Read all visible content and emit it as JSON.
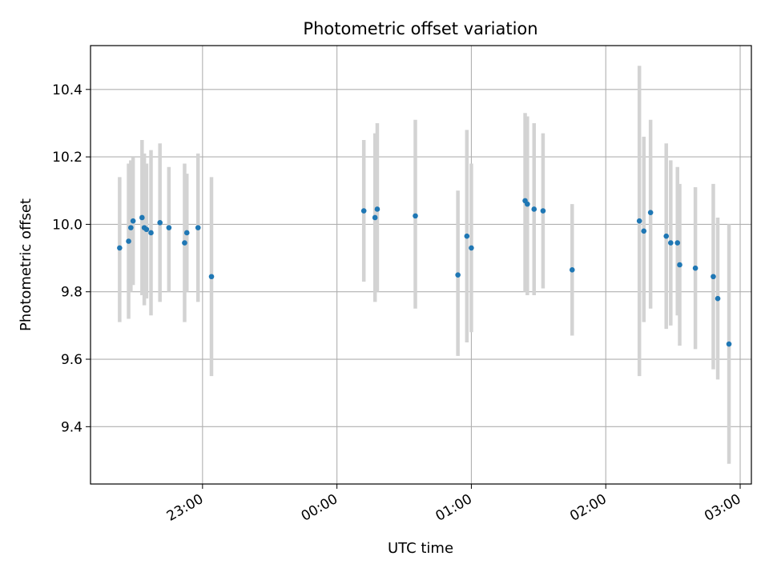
{
  "chart_data": {
    "type": "scatter",
    "title": "Photometric offset variation",
    "xlabel": "UTC time",
    "ylabel": "Photometric offset",
    "x_ticks": [
      "23:00",
      "00:00",
      "01:00",
      "02:00",
      "03:00"
    ],
    "y_ticks": [
      9.4,
      9.6,
      9.8,
      10.0,
      10.2,
      10.4
    ],
    "ylim": [
      9.23,
      10.53
    ],
    "xlim": [
      "22:10",
      "03:05"
    ],
    "grid": true,
    "colors": {
      "point": "#1f77b4",
      "errorbar": "#d3d3d3",
      "grid": "#b0b0b0"
    },
    "points": [
      {
        "t": "22:23",
        "y": 9.93,
        "lo": 9.71,
        "hi": 10.14
      },
      {
        "t": "22:27",
        "y": 9.95,
        "lo": 9.72,
        "hi": 10.18
      },
      {
        "t": "22:28",
        "y": 9.99,
        "lo": 9.8,
        "hi": 10.19
      },
      {
        "t": "22:29",
        "y": 10.01,
        "lo": 9.82,
        "hi": 10.2
      },
      {
        "t": "22:33",
        "y": 10.02,
        "lo": 9.79,
        "hi": 10.25
      },
      {
        "t": "22:34",
        "y": 9.99,
        "lo": 9.76,
        "hi": 10.21
      },
      {
        "t": "22:35",
        "y": 9.985,
        "lo": 9.78,
        "hi": 10.18
      },
      {
        "t": "22:37",
        "y": 9.975,
        "lo": 9.73,
        "hi": 10.22
      },
      {
        "t": "22:41",
        "y": 10.005,
        "lo": 9.77,
        "hi": 10.24
      },
      {
        "t": "22:45",
        "y": 9.99,
        "lo": 9.8,
        "hi": 10.17
      },
      {
        "t": "22:52",
        "y": 9.945,
        "lo": 9.71,
        "hi": 10.18
      },
      {
        "t": "22:53",
        "y": 9.975,
        "lo": 9.8,
        "hi": 10.15
      },
      {
        "t": "22:58",
        "y": 9.99,
        "lo": 9.77,
        "hi": 10.21
      },
      {
        "t": "23:04",
        "y": 9.845,
        "lo": 9.55,
        "hi": 10.14
      },
      {
        "t": "00:12",
        "y": 10.04,
        "lo": 9.83,
        "hi": 10.25
      },
      {
        "t": "00:17",
        "y": 10.02,
        "lo": 9.77,
        "hi": 10.27
      },
      {
        "t": "00:18",
        "y": 10.045,
        "lo": 9.8,
        "hi": 10.3
      },
      {
        "t": "00:35",
        "y": 10.025,
        "lo": 9.75,
        "hi": 10.31
      },
      {
        "t": "00:54",
        "y": 9.85,
        "lo": 9.61,
        "hi": 10.1
      },
      {
        "t": "00:58",
        "y": 9.965,
        "lo": 9.65,
        "hi": 10.28
      },
      {
        "t": "01:00",
        "y": 9.93,
        "lo": 9.68,
        "hi": 10.18
      },
      {
        "t": "01:24",
        "y": 10.07,
        "lo": 9.8,
        "hi": 10.33
      },
      {
        "t": "01:25",
        "y": 10.06,
        "lo": 9.79,
        "hi": 10.32
      },
      {
        "t": "01:28",
        "y": 10.045,
        "lo": 9.79,
        "hi": 10.3
      },
      {
        "t": "01:32",
        "y": 10.04,
        "lo": 9.81,
        "hi": 10.27
      },
      {
        "t": "01:45",
        "y": 9.865,
        "lo": 9.67,
        "hi": 10.06
      },
      {
        "t": "02:15",
        "y": 10.01,
        "lo": 9.55,
        "hi": 10.47
      },
      {
        "t": "02:17",
        "y": 9.98,
        "lo": 9.71,
        "hi": 10.26
      },
      {
        "t": "02:20",
        "y": 10.035,
        "lo": 9.75,
        "hi": 10.31
      },
      {
        "t": "02:27",
        "y": 9.965,
        "lo": 9.69,
        "hi": 10.24
      },
      {
        "t": "02:29",
        "y": 9.945,
        "lo": 9.7,
        "hi": 10.19
      },
      {
        "t": "02:32",
        "y": 9.945,
        "lo": 9.73,
        "hi": 10.17
      },
      {
        "t": "02:33",
        "y": 9.88,
        "lo": 9.64,
        "hi": 10.12
      },
      {
        "t": "02:40",
        "y": 9.87,
        "lo": 9.63,
        "hi": 10.11
      },
      {
        "t": "02:48",
        "y": 9.845,
        "lo": 9.57,
        "hi": 10.12
      },
      {
        "t": "02:50",
        "y": 9.78,
        "lo": 9.54,
        "hi": 10.02
      },
      {
        "t": "02:55",
        "y": 9.645,
        "lo": 9.29,
        "hi": 10.0
      }
    ]
  }
}
